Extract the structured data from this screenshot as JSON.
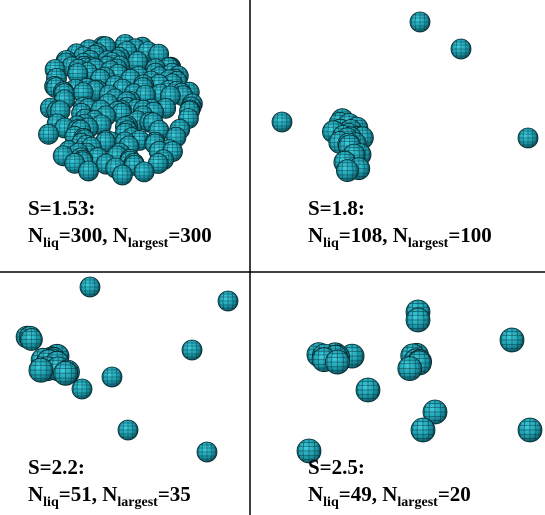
{
  "panels": [
    {
      "label": "S=1.53:",
      "line2": [
        "N",
        "liq",
        "=300, N",
        "largest",
        "=300"
      ]
    },
    {
      "label": "S=1.8:",
      "line2": [
        "N",
        "liq",
        "=108, N",
        "largest",
        "=100"
      ]
    },
    {
      "label": "S=2.2:",
      "line2": [
        "N",
        "liq",
        "=51, N",
        "largest",
        "=35"
      ]
    },
    {
      "label": "S=2.5:",
      "line2": [
        "N",
        "liq",
        "=49, N",
        "largest",
        "=20"
      ]
    }
  ]
}
